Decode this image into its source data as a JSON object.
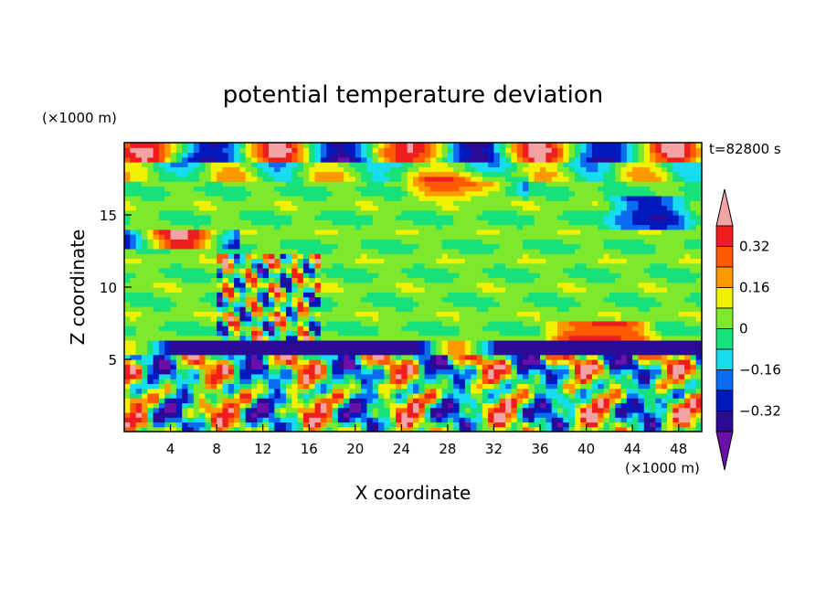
{
  "chart_data": {
    "type": "heatmap",
    "title": "potential temperature deviation",
    "xlabel": "X coordinate",
    "ylabel": "Z coordinate",
    "x_units": "(×1000 m)",
    "y_units": "(×1000 m)",
    "time_label": "t=82800 s",
    "xlim": [
      0,
      50
    ],
    "ylim": [
      0,
      20
    ],
    "x_ticks": [
      4,
      8,
      12,
      16,
      20,
      24,
      28,
      32,
      36,
      40,
      44,
      48
    ],
    "y_ticks": [
      5,
      10,
      15
    ],
    "colorbar": {
      "levels": [
        -0.4,
        -0.32,
        -0.24,
        -0.16,
        -0.08,
        0,
        0.08,
        0.16,
        0.24,
        0.32,
        0.4
      ],
      "tick_labels": [
        "0.32",
        "0.16",
        "0",
        "−0.16",
        "−0.32"
      ],
      "tick_values": [
        0.32,
        0.16,
        0,
        -0.16,
        -0.32
      ],
      "colors": [
        "#6a0fa8",
        "#2b0b95",
        "#0019bd",
        "#0a6cf0",
        "#18dcf0",
        "#18e07a",
        "#7de82c",
        "#f0f000",
        "#ff9900",
        "#ff5a00",
        "#ee1e1e",
        "#f2a3a3"
      ]
    },
    "grid": false,
    "legend_position": "right"
  }
}
